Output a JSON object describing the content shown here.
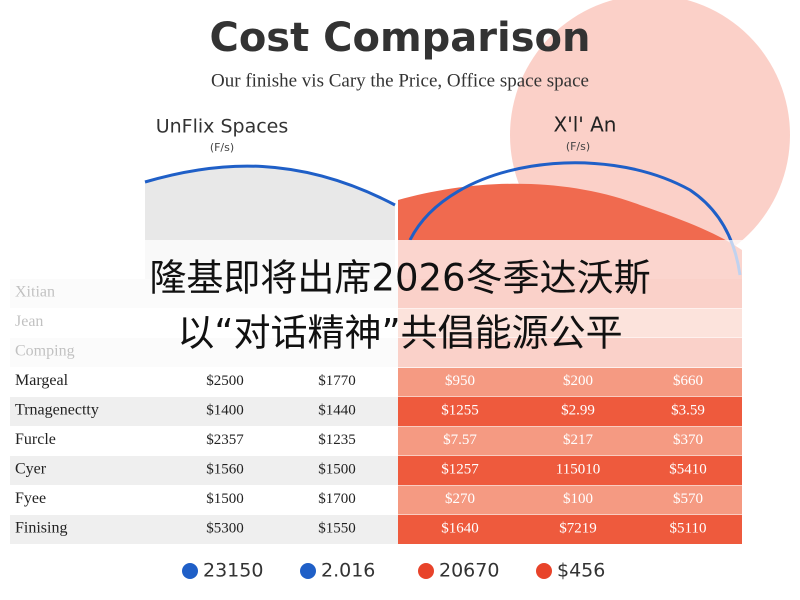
{
  "header": {
    "title": "Cost Comparison",
    "subtitle": "Our finishe vis Cary the Price, Office space space"
  },
  "left_panel": {
    "label": "UnFlix Spaces",
    "unit": "(F/s)"
  },
  "right_panel": {
    "label": "X'l' An",
    "unit": "(F/s)"
  },
  "overlay": {
    "lines": [
      "隆基即将出席2026冬季达沃斯",
      "以“对话精神”共倡能源公平"
    ]
  },
  "table": {
    "rows": [
      [
        "Xitian"
      ],
      [
        "Jean"
      ],
      [
        "Comping"
      ],
      [
        "Margeal",
        "$2500",
        "$1770",
        "$950",
        "$200",
        "$660"
      ],
      [
        "Trnagenectty",
        "$1400",
        "$1440",
        "$1255",
        "$2.99",
        "$3.59"
      ],
      [
        "Furcle",
        "$2357",
        "$1235",
        "$7.57",
        "$217",
        "$370"
      ],
      [
        "Cyer",
        "$1560",
        "$1500",
        "$1257",
        "115010",
        "$5410"
      ],
      [
        "Fyee",
        "$1500",
        "$1700",
        "$270",
        "$100",
        "$570"
      ],
      [
        "Finising",
        "$5300",
        "$1550",
        "$1640",
        "$7219",
        "$5110"
      ]
    ]
  },
  "legend": {
    "items": [
      {
        "label": "23150",
        "color": "#1f5fc7"
      },
      {
        "label": "2.016",
        "color": "#1f5fc7"
      },
      {
        "label": "20670",
        "color": "#e8432a"
      },
      {
        "label": "$456",
        "color": "#e8432a"
      }
    ]
  }
}
